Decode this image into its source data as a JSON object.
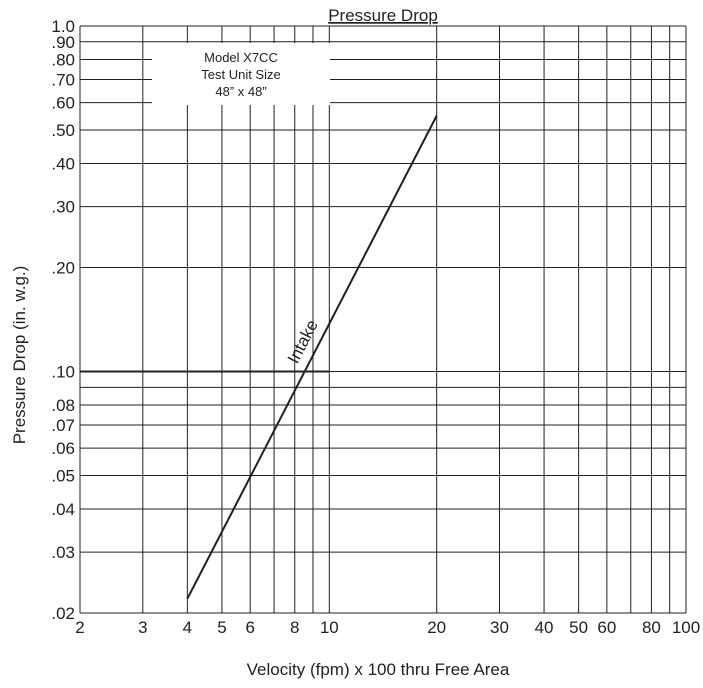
{
  "chart_data": {
    "type": "line",
    "title": "Pressure Drop",
    "xlabel": "Velocity (fpm) x 100 thru Free Area",
    "ylabel": "Pressure Drop (in. w.g.)",
    "x_scale": "log",
    "y_scale": "log",
    "xlim": [
      2,
      100
    ],
    "ylim": [
      0.02,
      1.0
    ],
    "x_ticks": [
      2,
      3,
      4,
      5,
      6,
      8,
      10,
      20,
      30,
      40,
      50,
      60,
      80,
      100
    ],
    "x_tick_labels": [
      "2",
      "3",
      "4",
      "5",
      "6",
      "8",
      "10",
      "20",
      "30",
      "40",
      "50",
      "60",
      "80",
      "100"
    ],
    "y_ticks": [
      0.02,
      0.03,
      0.04,
      0.05,
      0.06,
      0.07,
      0.08,
      0.1,
      0.2,
      0.3,
      0.4,
      0.5,
      0.6,
      0.7,
      0.8,
      0.9,
      1.0
    ],
    "y_tick_labels": [
      ".02",
      ".03",
      ".04",
      ".05",
      ".06",
      ".07",
      ".08",
      ".10",
      ".20",
      ".30",
      ".40",
      ".50",
      ".60",
      ".70",
      ".80",
      ".90",
      "1.0"
    ],
    "x_grid": [
      2,
      3,
      4,
      5,
      6,
      7,
      8,
      9,
      10,
      20,
      30,
      40,
      50,
      60,
      70,
      80,
      90,
      100
    ],
    "y_grid": [
      0.02,
      0.03,
      0.04,
      0.05,
      0.06,
      0.07,
      0.08,
      0.09,
      0.1,
      0.2,
      0.3,
      0.4,
      0.5,
      0.6,
      0.7,
      0.8,
      0.9,
      1.0
    ],
    "grid": true,
    "series": [
      {
        "name": "Intake",
        "x": [
          4,
          20
        ],
        "y": [
          0.022,
          0.55
        ],
        "label_position": [
          8.7,
          0.12
        ]
      }
    ],
    "reference_line": {
      "y": 0.1,
      "x_range": [
        2,
        10
      ]
    },
    "legend": {
      "placement": "top-left",
      "lines": [
        "Model X7CC",
        "Test Unit Size",
        "48” x 48”"
      ]
    }
  }
}
